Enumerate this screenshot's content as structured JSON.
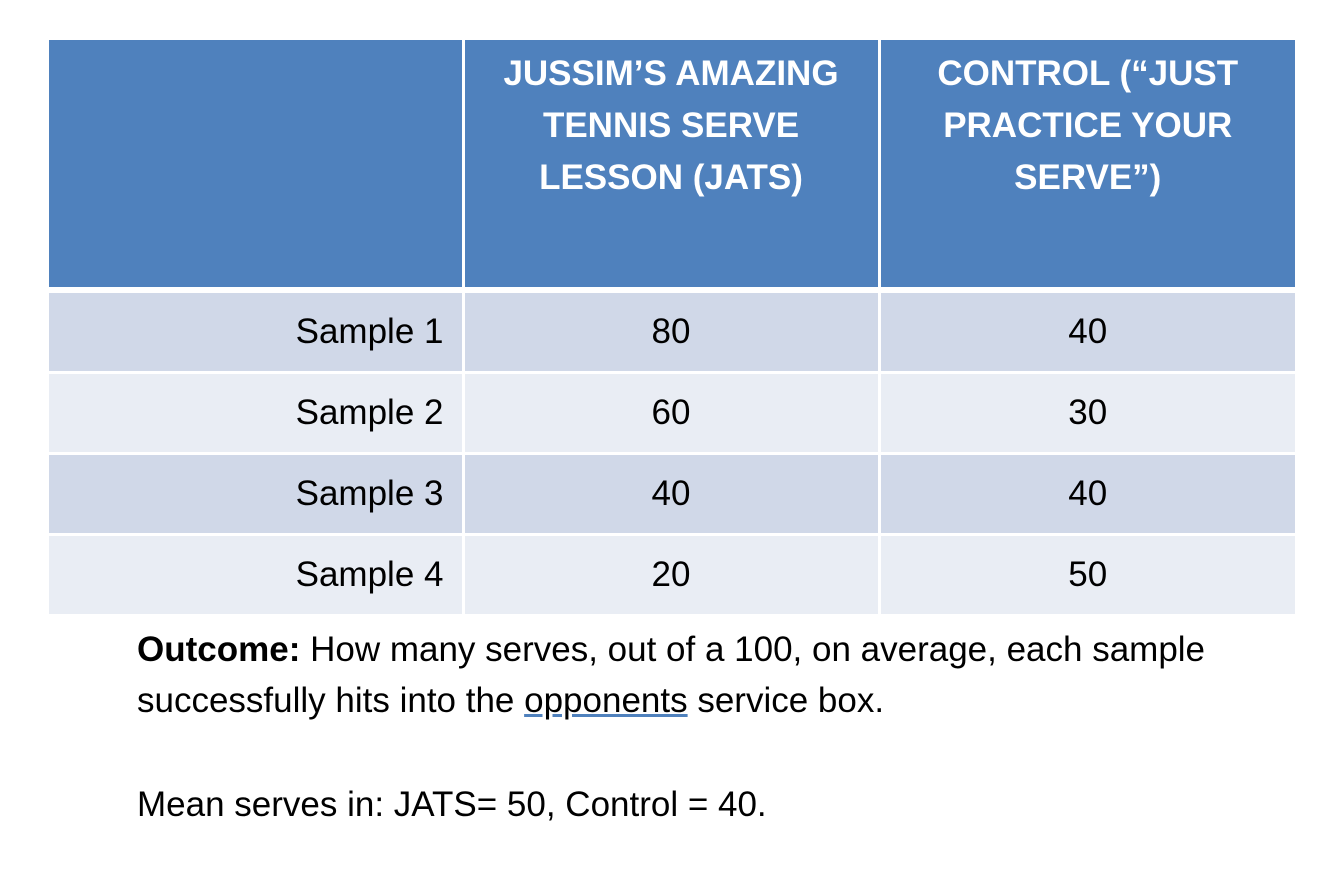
{
  "table": {
    "headers": [
      "",
      "JUSSIM’S AMAZING TENNIS SERVE LESSON (JATS)",
      "CONTROL (“JUST PRACTICE YOUR SERVE”)"
    ],
    "rows": [
      {
        "label": "Sample 1",
        "jats": "80",
        "control": "40"
      },
      {
        "label": "Sample 2",
        "jats": "60",
        "control": "30"
      },
      {
        "label": "Sample 3",
        "jats": "40",
        "control": "40"
      },
      {
        "label": "Sample 4",
        "jats": "20",
        "control": "50"
      }
    ]
  },
  "outcome": {
    "lead": "Outcome:",
    "text_before": " How many serves, out of a 100, on average, each sample successfully hits into the ",
    "underlined": "opponents",
    "text_after": " service box."
  },
  "mean": {
    "text": "Mean serves in: JATS= 50, Control = 40."
  },
  "colors": {
    "header_bg": "#4f81bd",
    "row_odd_bg": "#d0d8e8",
    "row_even_bg": "#e9edf4"
  }
}
